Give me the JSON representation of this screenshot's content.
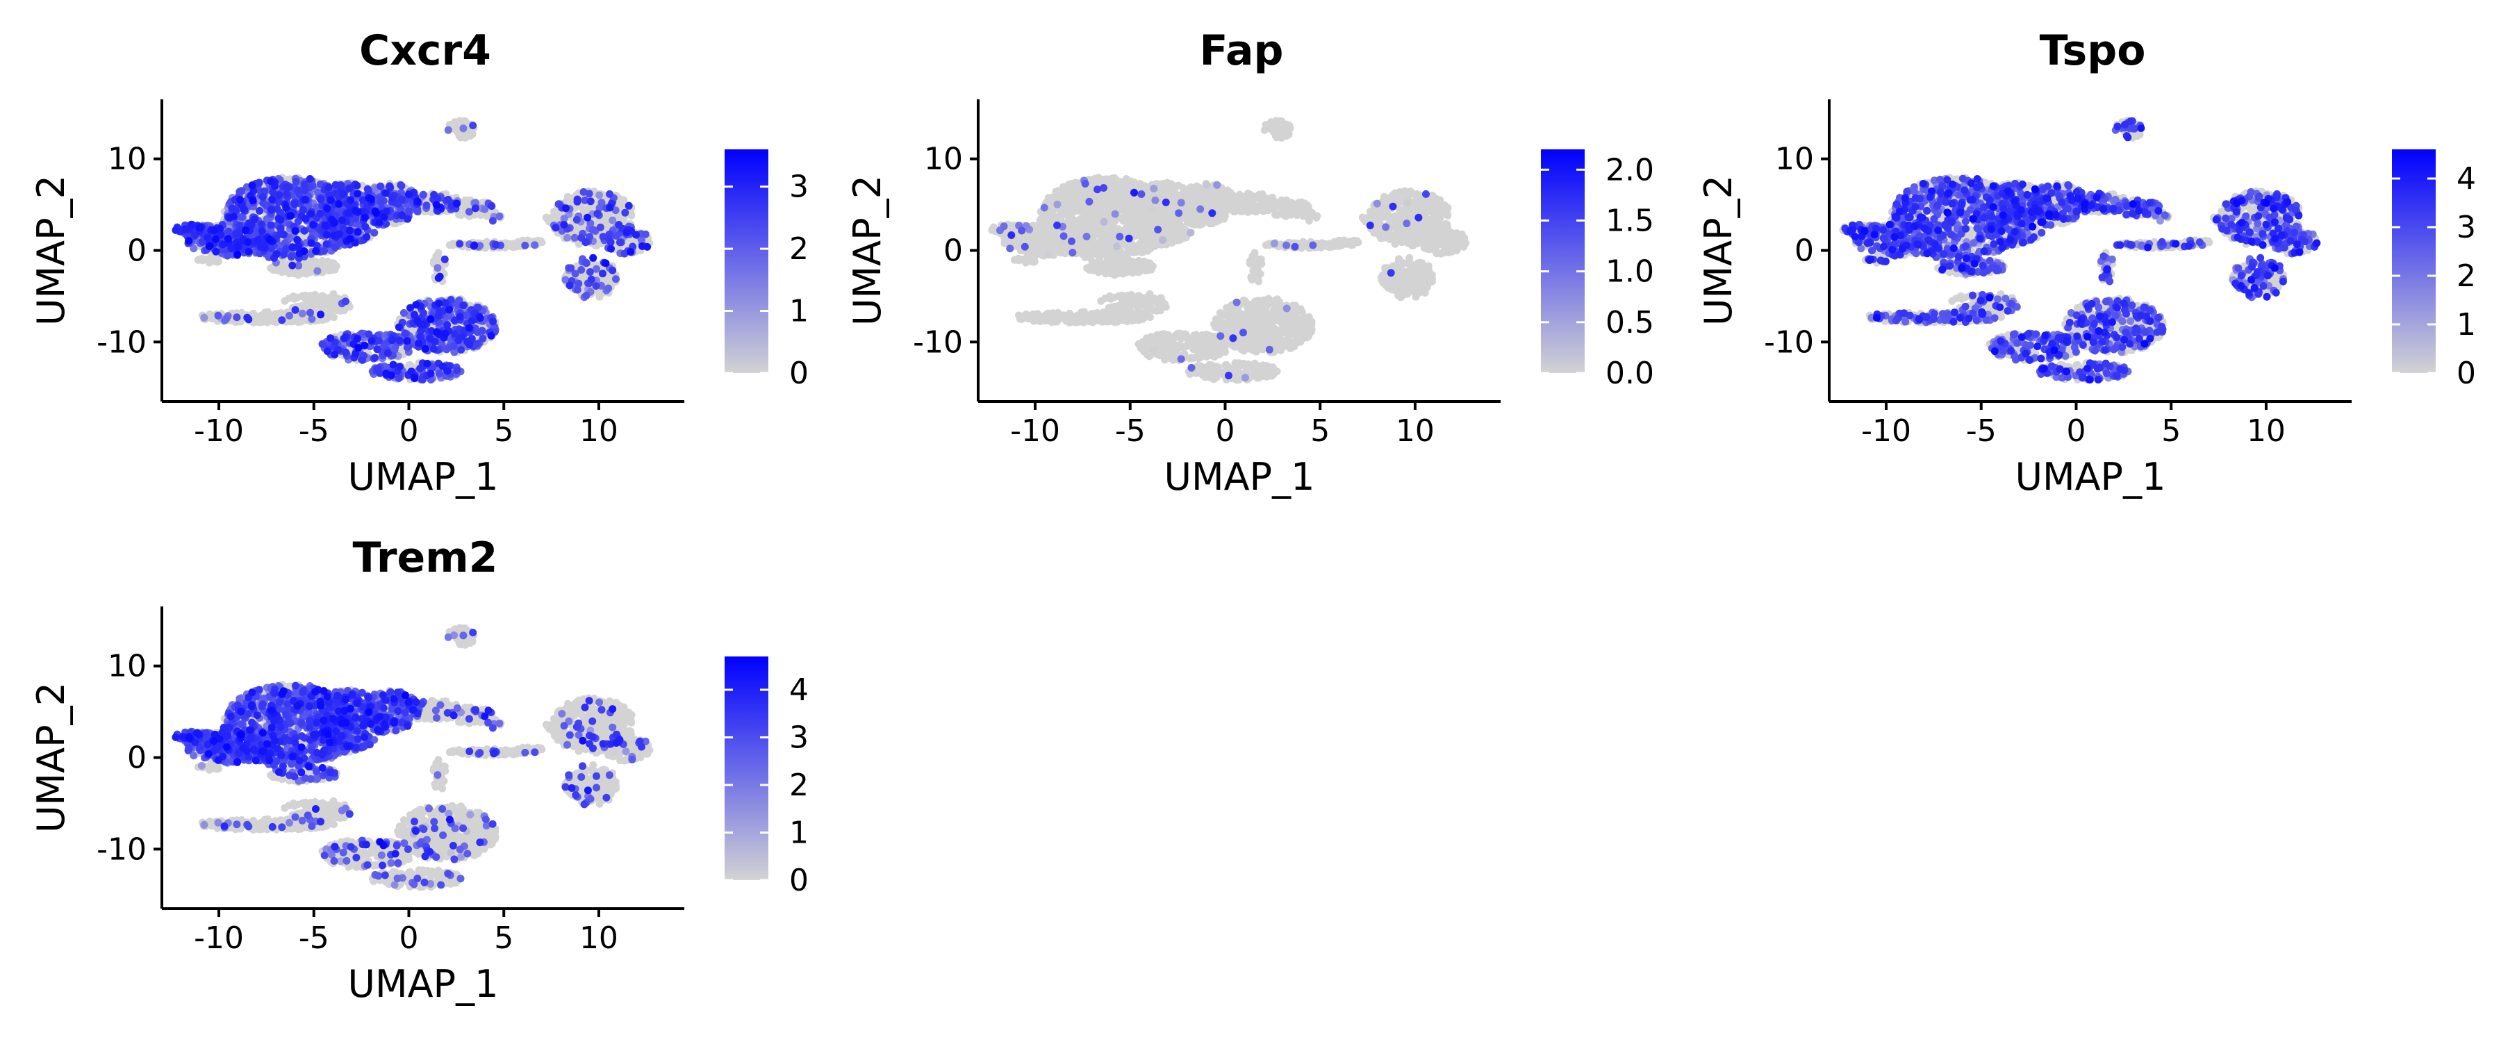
{
  "chart_data": [
    {
      "type": "scatter",
      "title": "Cxcr4",
      "xlabel": "UMAP_1",
      "ylabel": "UMAP_2",
      "xlim": [
        -13,
        14.5
      ],
      "ylim": [
        -16.5,
        16.5
      ],
      "xticks": [
        -10,
        -5,
        0,
        5,
        10
      ],
      "xtick_labels": [
        "-10",
        "-5",
        "0",
        "5",
        "10"
      ],
      "yticks": [
        10,
        0,
        -10
      ],
      "ytick_labels": [
        "10",
        "0",
        "-10"
      ],
      "expression_range": [
        0,
        3.6
      ],
      "colorbar_ticks": [
        0,
        1,
        2,
        3
      ],
      "colorbar_labels": [
        "0",
        "1",
        "2",
        "3"
      ],
      "color_low": "#d3d3d3",
      "color_high": "#0000ff",
      "cluster_levels": [
        0.55,
        0.75,
        0.05,
        0.2,
        0.12,
        0.25,
        0.06,
        0.55,
        0.1,
        0.1,
        0.02
      ]
    },
    {
      "type": "scatter",
      "title": "Fap",
      "xlabel": "UMAP_1",
      "ylabel": "UMAP_2",
      "xlim": [
        -13,
        14.5
      ],
      "ylim": [
        -16.5,
        16.5
      ],
      "xticks": [
        -10,
        -5,
        0,
        5,
        10
      ],
      "xtick_labels": [
        "-10",
        "-5",
        "0",
        "5",
        "10"
      ],
      "yticks": [
        10,
        0,
        -10
      ],
      "ytick_labels": [
        "10",
        "0",
        "-10"
      ],
      "expression_range": [
        0,
        2.2
      ],
      "colorbar_ticks": [
        0,
        0.5,
        1,
        1.5,
        2
      ],
      "colorbar_labels": [
        "0.0",
        "0.5",
        "1.0",
        "1.5",
        "2.0"
      ],
      "color_low": "#d3d3d3",
      "color_high": "#0000ff",
      "cluster_levels": [
        0.01,
        0.02,
        0.0,
        0.0,
        0.02,
        0.01,
        0.0,
        0.01,
        0.0,
        0.0,
        0.0
      ]
    },
    {
      "type": "scatter",
      "title": "Tspo",
      "xlabel": "UMAP_1",
      "ylabel": "UMAP_2",
      "xlim": [
        -13,
        14.5
      ],
      "ylim": [
        -16.5,
        16.5
      ],
      "xticks": [
        -10,
        -5,
        0,
        5,
        10
      ],
      "xtick_labels": [
        "-10",
        "-5",
        "0",
        "5",
        "10"
      ],
      "yticks": [
        10,
        0,
        -10
      ],
      "ytick_labels": [
        "10",
        "0",
        "-10"
      ],
      "expression_range": [
        0,
        4.6
      ],
      "colorbar_ticks": [
        0,
        1,
        2,
        3,
        4
      ],
      "colorbar_labels": [
        "0",
        "1",
        "2",
        "3",
        "4"
      ],
      "color_low": "#d3d3d3",
      "color_high": "#0000ff",
      "cluster_levels": [
        0.45,
        0.5,
        0.35,
        0.45,
        0.3,
        0.45,
        0.3,
        0.4,
        0.35,
        0.45,
        0.5
      ]
    },
    {
      "type": "scatter",
      "title": "Trem2",
      "xlabel": "UMAP_1",
      "ylabel": "UMAP_2",
      "xlim": [
        -13,
        14.5
      ],
      "ylim": [
        -16.5,
        16.5
      ],
      "xticks": [
        -10,
        -5,
        0,
        5,
        10
      ],
      "xtick_labels": [
        "-10",
        "-5",
        "0",
        "5",
        "10"
      ],
      "yticks": [
        10,
        0,
        -10
      ],
      "ytick_labels": [
        "10",
        "0",
        "-10"
      ],
      "expression_range": [
        0,
        4.7
      ],
      "colorbar_ticks": [
        0,
        1,
        2,
        3,
        4
      ],
      "colorbar_labels": [
        "0",
        "1",
        "2",
        "3",
        "4"
      ],
      "color_low": "#d3d3d3",
      "color_high": "#0000ff",
      "cluster_levels": [
        0.7,
        0.85,
        0.08,
        0.1,
        0.08,
        0.1,
        0.05,
        0.1,
        0.05,
        0.1,
        0.25
      ]
    }
  ]
}
